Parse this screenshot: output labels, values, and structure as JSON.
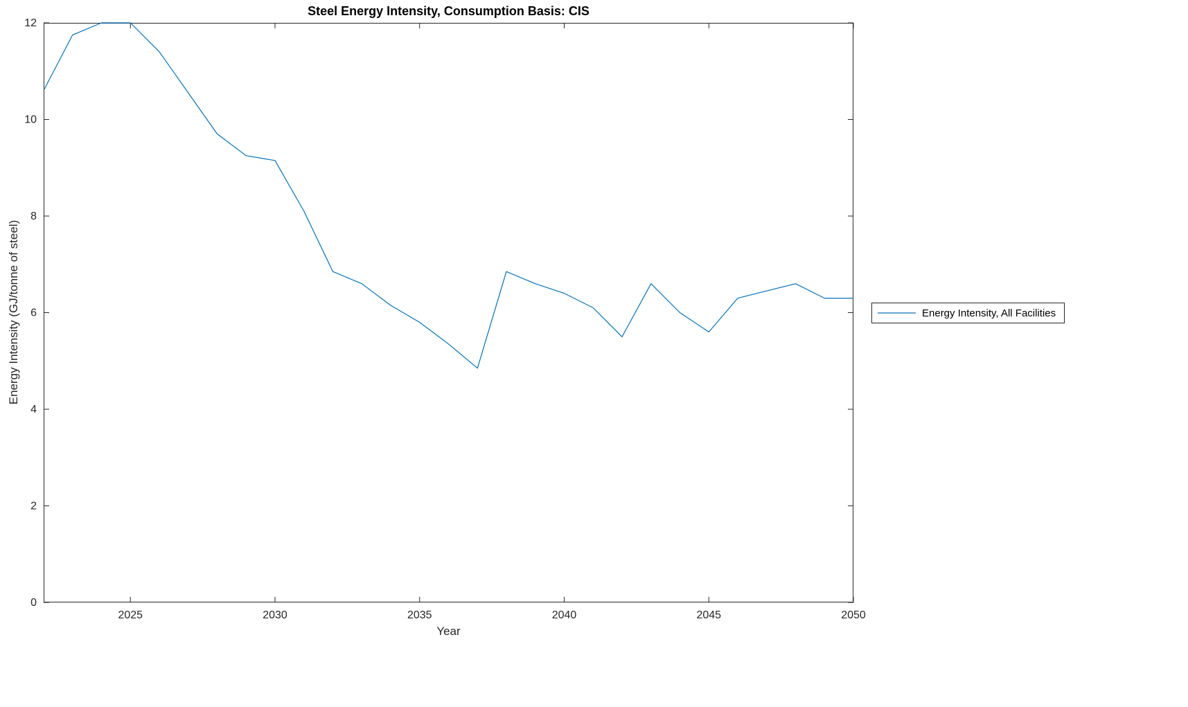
{
  "chart_data": {
    "type": "line",
    "title": "Steel Energy Intensity, Consumption Basis: CIS",
    "xlabel": "Year",
    "ylabel": "Energy Intensity (GJ/tonne of steel)",
    "legend_entries": [
      "Energy Intensity, All Facilities"
    ],
    "legend_position": "right-outside",
    "grid": false,
    "xlim": [
      2022,
      2050
    ],
    "ylim": [
      0,
      12
    ],
    "xticks": [
      2025,
      2030,
      2035,
      2040,
      2045,
      2050
    ],
    "yticks": [
      0,
      2,
      4,
      6,
      8,
      10,
      12
    ],
    "x": [
      2022,
      2023,
      2024,
      2025,
      2026,
      2027,
      2028,
      2029,
      2030,
      2031,
      2032,
      2033,
      2034,
      2035,
      2036,
      2037,
      2038,
      2039,
      2040,
      2041,
      2042,
      2043,
      2044,
      2045,
      2046,
      2047,
      2048,
      2049,
      2050
    ],
    "series": [
      {
        "name": "Energy Intensity, All Facilities",
        "color": "#0072BD",
        "values": [
          10.6,
          11.75,
          12.0,
          12.0,
          11.4,
          10.55,
          9.7,
          9.25,
          9.15,
          8.1,
          6.85,
          6.6,
          6.15,
          5.8,
          5.35,
          4.85,
          6.85,
          6.6,
          6.4,
          6.1,
          5.5,
          6.6,
          6.0,
          5.6,
          6.3,
          6.45,
          6.6,
          6.3,
          6.3
        ]
      }
    ]
  },
  "colors": {
    "axis": "#262626",
    "line": "#0072BD",
    "background": "#ffffff"
  }
}
